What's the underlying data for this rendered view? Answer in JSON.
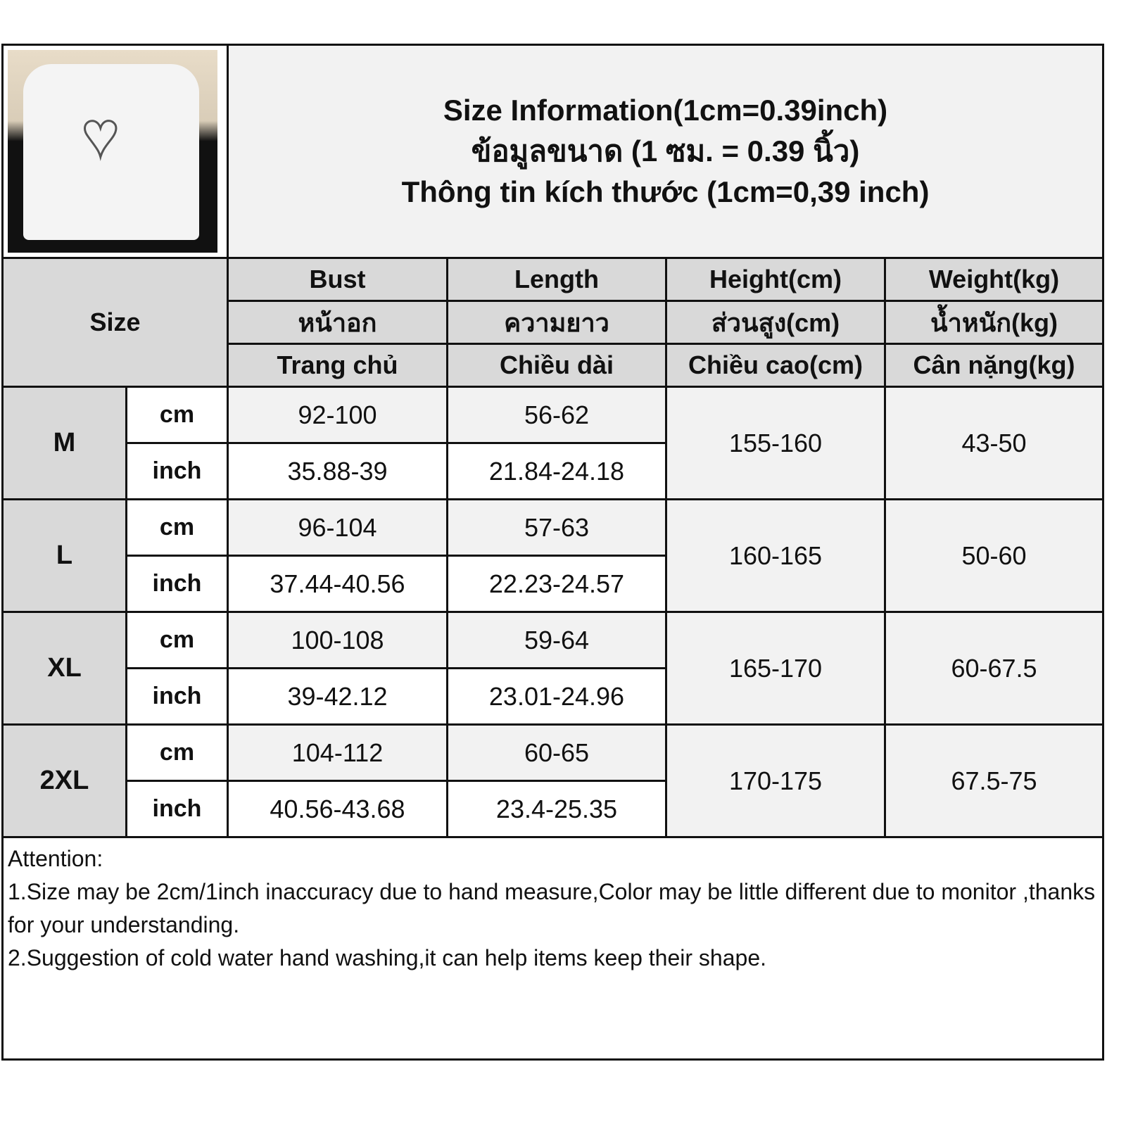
{
  "title_lines": [
    "Size Information(1cm=0.39inch)",
    "ข้อมูลขนาด (1 ซม. = 0.39 นิ้ว)",
    "Thông tin kích thước (1cm=0,39 inch)"
  ],
  "size_label": "Size",
  "columns": [
    {
      "en": "Bust",
      "th": "หน้าอก",
      "vi": "Trang chủ"
    },
    {
      "en": "Length",
      "th": "ความยาว",
      "vi": "Chiều dài"
    },
    {
      "en": "Height(cm)",
      "th": "ส่วนสูง(cm)",
      "vi": "Chiều cao(cm)"
    },
    {
      "en": "Weight(kg)",
      "th": "น้ำหนัก(kg)",
      "vi": "Cân nặng(kg)"
    }
  ],
  "units": {
    "cm": "cm",
    "inch": "inch"
  },
  "rows": [
    {
      "size": "M",
      "bust_cm": "92-100",
      "length_cm": "56-62",
      "bust_in": "35.88-39",
      "length_in": "21.84-24.18",
      "height": "155-160",
      "weight": "43-50"
    },
    {
      "size": "L",
      "bust_cm": "96-104",
      "length_cm": "57-63",
      "bust_in": "37.44-40.56",
      "length_in": "22.23-24.57",
      "height": "160-165",
      "weight": "50-60"
    },
    {
      "size": "XL",
      "bust_cm": "100-108",
      "length_cm": "59-64",
      "bust_in": "39-42.12",
      "length_in": "23.01-24.96",
      "height": "165-170",
      "weight": "60-67.5"
    },
    {
      "size": "2XL",
      "bust_cm": "104-112",
      "length_cm": "60-65",
      "bust_in": "40.56-43.68",
      "length_in": "23.4-25.35",
      "height": "170-175",
      "weight": "67.5-75"
    }
  ],
  "notes": [
    "Attention:",
    "1.Size may be 2cm/1inch inaccuracy due to hand measure,Color may be little different due to monitor ,thanks for your understanding.",
    "2.Suggestion of cold water hand washing,it can help items keep their shape."
  ]
}
